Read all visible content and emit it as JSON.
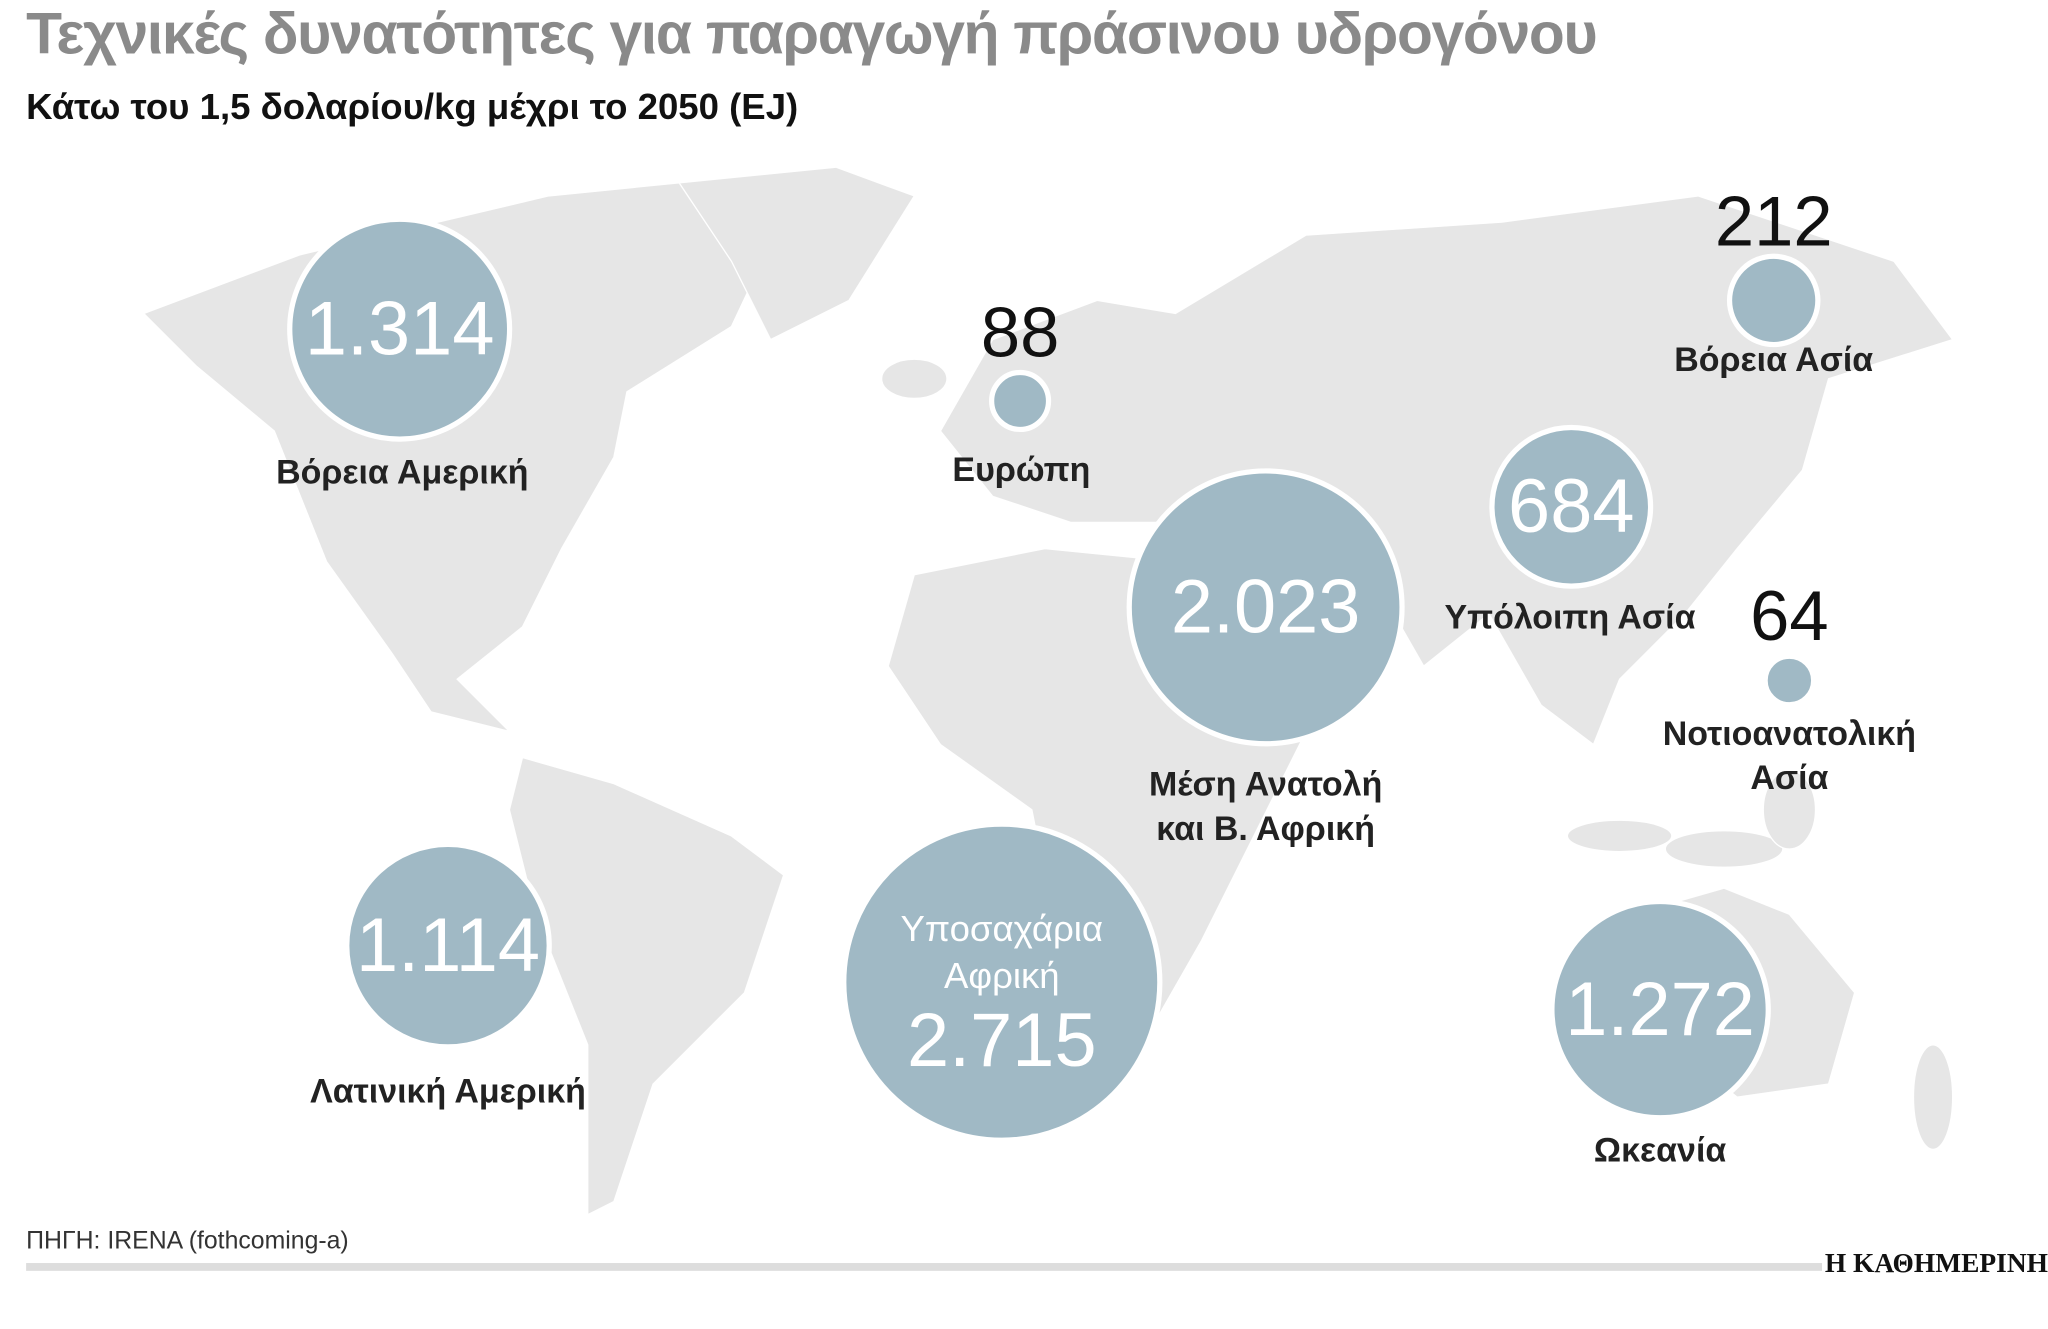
{
  "chart_data": {
    "type": "bubble_map",
    "title": "Τεχνικές δυνατότητες για παραγωγή πράσινου υδρογόνου",
    "subtitle": "Κάτω του 1,5 δολαρίου/kg μέχρι το 2050 (EJ)",
    "source": "ΠΗΓΗ: IRENA (fothcoming-a)",
    "color": "#a0b9c5",
    "categories": [
      "Βόρεια Αμερική",
      "Ευρώπη",
      "Βόρεια Ασία",
      "Υπόλοιπη Ασία",
      "Μέση Ανατολή και Β. Αφρική",
      "Νοτιοανατολική Ασία",
      "Λατινική Αμερική",
      "Υποσαχάρια Αφρική",
      "Ωκεανία"
    ],
    "values": [
      1314,
      88,
      212,
      684,
      2023,
      64,
      1114,
      2715,
      1272
    ],
    "value_labels": [
      "1.314",
      "88",
      "212",
      "684",
      "2.023",
      "64",
      "1.114",
      "2.715",
      "1.272"
    ]
  },
  "brand": "Η ΚΑΘΗΜΕΡΙΝΗ"
}
